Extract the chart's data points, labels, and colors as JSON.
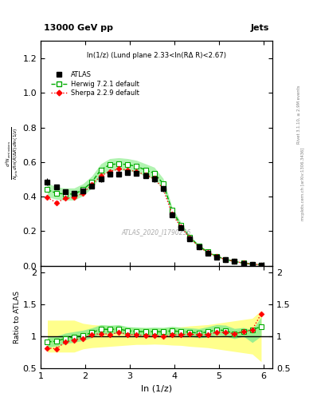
{
  "title_left": "13000 GeV pp",
  "title_right": "Jets",
  "panel_title": "ln(1/z) (Lund plane 2.33<ln(RΔ R)<2.67)",
  "watermark": "ATLAS_2020_I1790256",
  "right_label_top": "Rivet 3.1.10, ≥ 2.9M events",
  "right_label_bottom": "mcplots.cern.ch [arXiv:1306.3436]",
  "ylabel_main": "$\\frac{1}{N_{jets}}\\frac{d}{d\\ln(R/\\Delta R)\\,d\\ln(1/z)}$",
  "ylabel_ratio": "Ratio to ATLAS",
  "xlabel": "ln (1/z)",
  "xlim": [
    1.0,
    6.2
  ],
  "ylim_main": [
    0.0,
    1.3
  ],
  "ylim_ratio": [
    0.5,
    2.1
  ],
  "atlas_x": [
    1.15,
    1.35,
    1.55,
    1.75,
    1.95,
    2.15,
    2.35,
    2.55,
    2.75,
    2.95,
    3.15,
    3.35,
    3.55,
    3.75,
    3.95,
    4.15,
    4.35,
    4.55,
    4.75,
    4.95,
    5.15,
    5.35,
    5.55,
    5.75,
    5.95
  ],
  "atlas_y": [
    0.485,
    0.455,
    0.43,
    0.42,
    0.435,
    0.46,
    0.5,
    0.53,
    0.53,
    0.54,
    0.535,
    0.52,
    0.5,
    0.445,
    0.295,
    0.22,
    0.155,
    0.11,
    0.075,
    0.05,
    0.035,
    0.025,
    0.015,
    0.01,
    0.005
  ],
  "atlas_yerr": [
    0.02,
    0.015,
    0.012,
    0.012,
    0.012,
    0.015,
    0.015,
    0.015,
    0.015,
    0.015,
    0.015,
    0.015,
    0.015,
    0.015,
    0.015,
    0.012,
    0.01,
    0.008,
    0.006,
    0.005,
    0.004,
    0.003,
    0.002,
    0.002,
    0.001
  ],
  "herwig_x": [
    1.15,
    1.35,
    1.55,
    1.75,
    1.95,
    2.15,
    2.35,
    2.55,
    2.75,
    2.95,
    3.15,
    3.35,
    3.55,
    3.75,
    3.95,
    4.15,
    4.35,
    4.55,
    4.75,
    4.95,
    5.15,
    5.35,
    5.55,
    5.75,
    5.95
  ],
  "herwig_y": [
    0.44,
    0.42,
    0.415,
    0.415,
    0.44,
    0.485,
    0.555,
    0.585,
    0.59,
    0.585,
    0.575,
    0.555,
    0.535,
    0.475,
    0.32,
    0.235,
    0.165,
    0.115,
    0.08,
    0.055,
    0.038,
    0.026,
    0.016,
    0.01,
    0.006
  ],
  "herwig_band_y1": [
    0.4,
    0.385,
    0.38,
    0.38,
    0.405,
    0.45,
    0.52,
    0.55,
    0.555,
    0.55,
    0.54,
    0.52,
    0.5,
    0.445,
    0.3,
    0.22,
    0.155,
    0.107,
    0.074,
    0.051,
    0.035,
    0.024,
    0.015,
    0.009,
    0.005
  ],
  "herwig_band_y2": [
    0.48,
    0.455,
    0.45,
    0.45,
    0.475,
    0.52,
    0.59,
    0.62,
    0.625,
    0.62,
    0.61,
    0.59,
    0.57,
    0.505,
    0.34,
    0.25,
    0.175,
    0.123,
    0.086,
    0.059,
    0.041,
    0.028,
    0.017,
    0.011,
    0.007
  ],
  "sherpa_x": [
    1.15,
    1.35,
    1.55,
    1.75,
    1.95,
    2.15,
    2.35,
    2.55,
    2.75,
    2.95,
    3.15,
    3.35,
    3.55,
    3.75,
    3.95,
    4.15,
    4.35,
    4.55,
    4.75,
    4.95,
    5.15,
    5.35,
    5.55,
    5.75,
    5.95
  ],
  "sherpa_y": [
    0.395,
    0.365,
    0.39,
    0.395,
    0.42,
    0.47,
    0.52,
    0.545,
    0.56,
    0.555,
    0.545,
    0.525,
    0.505,
    0.445,
    0.3,
    0.225,
    0.16,
    0.112,
    0.077,
    0.053,
    0.037,
    0.026,
    0.016,
    0.01,
    0.006
  ],
  "herwig_ratio_y": [
    0.91,
    0.92,
    0.965,
    0.988,
    1.012,
    1.054,
    1.11,
    1.104,
    1.113,
    1.083,
    1.075,
    1.067,
    1.07,
    1.067,
    1.085,
    1.068,
    1.065,
    1.045,
    1.067,
    1.1,
    1.086,
    1.04,
    1.067,
    1.1,
    1.15
  ],
  "herwig_ratio_band1": [
    0.826,
    0.846,
    0.884,
    0.905,
    0.931,
    0.978,
    1.04,
    1.038,
    1.047,
    1.018,
    1.009,
    1.0,
    1.0,
    1.0,
    1.017,
    1.0,
    1.0,
    0.972,
    0.987,
    1.02,
    1.0,
    0.96,
    1.0,
    0.9,
    1.0
  ],
  "herwig_ratio_band2": [
    0.99,
    0.999,
    1.047,
    1.071,
    1.093,
    1.13,
    1.18,
    1.17,
    1.179,
    1.148,
    1.141,
    1.134,
    1.14,
    1.135,
    1.153,
    1.136,
    1.13,
    1.118,
    1.147,
    1.18,
    1.172,
    1.12,
    1.134,
    1.1,
    1.3
  ],
  "sherpa_ratio_y": [
    0.815,
    0.802,
    0.907,
    0.94,
    0.966,
    1.022,
    1.04,
    1.028,
    1.057,
    1.028,
    1.019,
    1.01,
    1.01,
    1.0,
    1.017,
    1.023,
    1.032,
    1.018,
    1.027,
    1.06,
    1.057,
    1.04,
    1.067,
    1.1,
    1.35
  ],
  "atlas_color": "#000000",
  "herwig_color": "#00aa00",
  "sherpa_color": "#ff0000",
  "herwig_band_color": "#90ee90",
  "atlas_band_y1": [
    0.75,
    0.75,
    0.75,
    0.75,
    0.8,
    0.82,
    0.83,
    0.84,
    0.85,
    0.86,
    0.87,
    0.87,
    0.875,
    0.87,
    0.86,
    0.855,
    0.84,
    0.83,
    0.82,
    0.8,
    0.78,
    0.76,
    0.74,
    0.72,
    0.6
  ],
  "atlas_band_y2": [
    1.25,
    1.25,
    1.25,
    1.25,
    1.2,
    1.18,
    1.17,
    1.16,
    1.15,
    1.14,
    1.13,
    1.13,
    1.125,
    1.13,
    1.14,
    1.145,
    1.16,
    1.17,
    1.18,
    1.2,
    1.22,
    1.24,
    1.26,
    1.28,
    1.4
  ]
}
